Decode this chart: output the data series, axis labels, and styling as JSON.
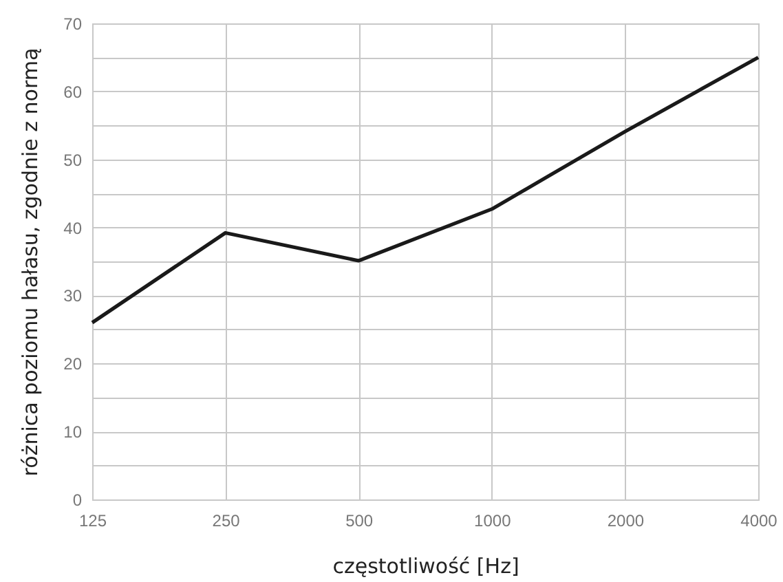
{
  "chart_data": {
    "type": "line",
    "xlabel": "częstotliwość [Hz]",
    "ylabel": "różnica poziomu hałasu, zgodnie z normą",
    "categories": [
      "125",
      "250",
      "500",
      "1000",
      "2000",
      "4000"
    ],
    "series": [
      {
        "color": "#1a1a1a",
        "values": [
          26,
          39.2,
          35.1,
          42.7,
          54.1,
          65
        ]
      }
    ],
    "ylim": [
      0,
      70
    ],
    "yticks": [
      0,
      {
        "value": 5,
        "label": null
      },
      10,
      {
        "value": 15,
        "label": null
      },
      20,
      {
        "value": 25,
        "label": null
      },
      30,
      {
        "value": 35,
        "label": null
      },
      40,
      {
        "value": 45,
        "label": null
      },
      50,
      {
        "value": 55,
        "label": null
      },
      60,
      {
        "value": 65,
        "label": null
      },
      70
    ],
    "grid": true,
    "marker": "none",
    "line_style": "solid"
  }
}
